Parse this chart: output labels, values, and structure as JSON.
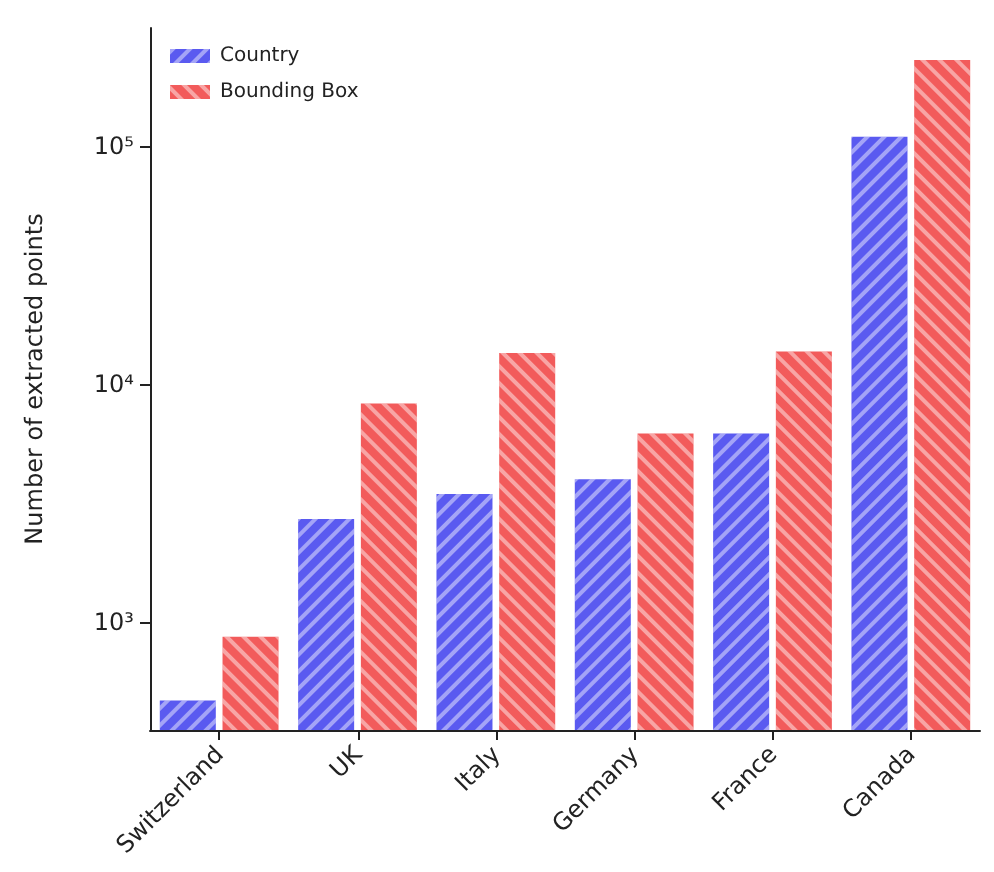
{
  "chart_data": {
    "type": "bar",
    "ylabel": "Number of extracted points",
    "categories": [
      "Switzerland",
      "UK",
      "Italy",
      "Germany",
      "France",
      "Canada"
    ],
    "series": [
      {
        "name": "Country",
        "color": "#5a5af0",
        "values": [
          470,
          2710,
          3450,
          3980,
          6200,
          109000
        ]
      },
      {
        "name": "Bounding Box",
        "color": "#f25b5b",
        "values": [
          870,
          8280,
          13500,
          6200,
          13700,
          229000
        ]
      }
    ],
    "log": true,
    "ylim": [
      353,
      312000
    ],
    "yticks": [
      {
        "value": 1000,
        "label": "10³"
      },
      {
        "value": 10000,
        "label": "10⁴"
      },
      {
        "value": 100000,
        "label": "10⁵"
      }
    ],
    "legend": "top left",
    "grid": false
  }
}
